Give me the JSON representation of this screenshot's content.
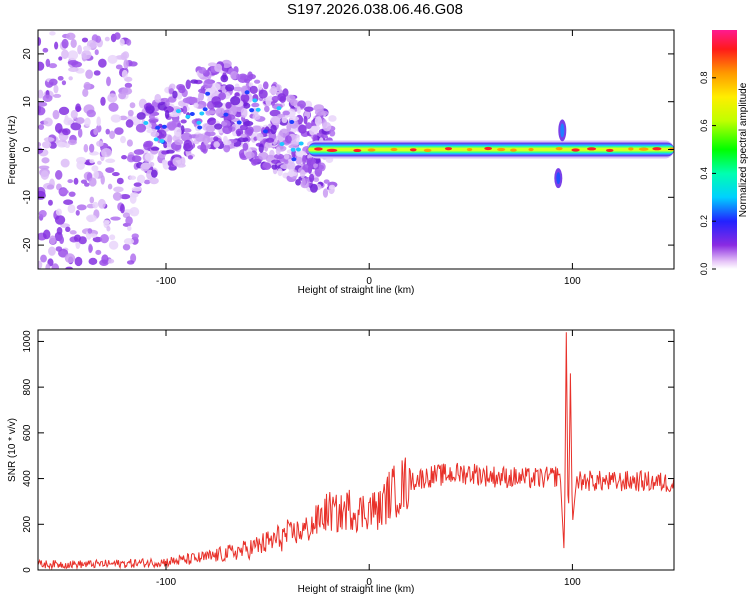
{
  "title": "S197.2026.038.06.46.G08",
  "chart_data": [
    {
      "type": "heatmap",
      "description_source": "spectrogram of frequency vs height",
      "xlabel": "Height of straight line (km)",
      "ylabel": "Frequency (Hz)",
      "xlim": [
        -163,
        150
      ],
      "ylim": [
        -25,
        25
      ],
      "xticks": [
        -100,
        0,
        100
      ],
      "yticks": [
        -20,
        -10,
        0,
        10,
        20
      ],
      "colorbar": {
        "label": "Normalized spectral amplitude",
        "range": [
          0,
          1
        ],
        "ticks": [
          0.0,
          0.2,
          0.4,
          0.6,
          0.8
        ]
      },
      "features": {
        "noise_region_x": [
          -163,
          -30
        ],
        "signal_band_freq": 0,
        "signal_start_x": -30,
        "spike_x": 97
      }
    },
    {
      "type": "line",
      "xlabel": "Height of straight line (km)",
      "ylabel": "SNR (10 * v/v)",
      "xlim": [
        -163,
        150
      ],
      "ylim": [
        0,
        1050
      ],
      "xticks": [
        -100,
        0,
        100
      ],
      "yticks": [
        0,
        200,
        400,
        600,
        800,
        1000
      ],
      "color": "#e8312a",
      "series": [
        {
          "name": "SNR",
          "x": [
            -163,
            -140,
            -120,
            -100,
            -80,
            -60,
            -50,
            -40,
            -30,
            -25,
            -20,
            -15,
            -10,
            -5,
            0,
            5,
            10,
            20,
            30,
            40,
            50,
            60,
            70,
            80,
            90,
            94,
            96,
            97,
            98,
            99,
            100,
            102,
            110,
            120,
            130,
            140,
            150
          ],
          "values": [
            25,
            25,
            28,
            35,
            55,
            90,
            120,
            155,
            180,
            220,
            260,
            240,
            270,
            250,
            270,
            260,
            330,
            390,
            410,
            420,
            425,
            410,
            405,
            400,
            405,
            420,
            60,
            1040,
            150,
            860,
            200,
            390,
            390,
            385,
            390,
            385,
            380
          ]
        }
      ]
    }
  ]
}
